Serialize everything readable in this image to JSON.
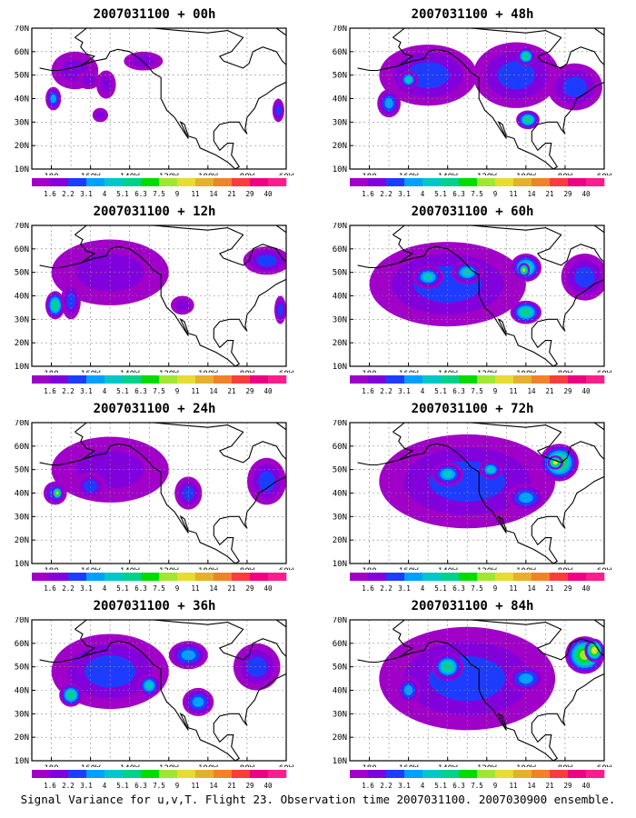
{
  "figure": {
    "caption": "Signal Variance for u,v,T. Flight 23. Observation time 2007031100. 2007030900 ensemble."
  },
  "axes": {
    "lat_labels": [
      "70N",
      "60N",
      "50N",
      "40N",
      "30N",
      "20N",
      "10N"
    ],
    "lon_labels": [
      "180",
      "160W",
      "140W",
      "120W",
      "100W",
      "80W",
      "60W"
    ]
  },
  "colorbar": {
    "levels": [
      "1.6",
      "2.2",
      "3.1",
      "4",
      "5.1",
      "6.3",
      "7.5",
      "9",
      "11",
      "14",
      "21",
      "29",
      "40"
    ],
    "colors": [
      "#a000c8",
      "#8200dc",
      "#1e3cff",
      "#00a0ff",
      "#00c8c8",
      "#00d28c",
      "#00dc00",
      "#a0e632",
      "#e6dc32",
      "#e6af2d",
      "#f08228",
      "#fa3c3c",
      "#f00082"
    ]
  },
  "panels": [
    {
      "title": "2007031100 + 00h",
      "blobs": [
        [
          -168,
          52,
          12,
          8,
          1
        ],
        [
          -179,
          40,
          4,
          5,
          3
        ],
        [
          -161,
          48,
          6,
          4,
          1
        ],
        [
          -152,
          46,
          5,
          6,
          1
        ],
        [
          -133,
          56,
          10,
          4,
          1
        ],
        [
          -64,
          35,
          3,
          5,
          2
        ],
        [
          -155,
          33,
          4,
          3,
          1
        ]
      ]
    },
    {
      "title": "2007031100 + 48h",
      "blobs": [
        [
          -150,
          50,
          25,
          13,
          2
        ],
        [
          -170,
          38,
          6,
          6,
          3
        ],
        [
          -160,
          48,
          5,
          4,
          4
        ],
        [
          -105,
          50,
          22,
          14,
          2
        ],
        [
          -100,
          58,
          5,
          4,
          5
        ],
        [
          -99,
          31,
          6,
          4,
          5
        ],
        [
          -75,
          45,
          14,
          10,
          2
        ]
      ]
    },
    {
      "title": "2007031100 + 12h",
      "blobs": [
        [
          -150,
          50,
          30,
          14,
          1
        ],
        [
          -178,
          36,
          5,
          6,
          5
        ],
        [
          -170,
          38,
          5,
          8,
          2
        ],
        [
          -70,
          55,
          12,
          6,
          2
        ],
        [
          -63,
          34,
          3,
          6,
          2
        ],
        [
          -113,
          36,
          6,
          4,
          1
        ]
      ]
    },
    {
      "title": "2007031100 + 60h",
      "blobs": [
        [
          -140,
          45,
          40,
          18,
          2
        ],
        [
          -150,
          48,
          8,
          5,
          4
        ],
        [
          -130,
          50,
          8,
          5,
          4
        ],
        [
          -100,
          52,
          8,
          6,
          5
        ],
        [
          -101,
          51,
          3,
          3,
          7
        ],
        [
          -100,
          33,
          8,
          5,
          5
        ],
        [
          -70,
          48,
          12,
          10,
          2
        ]
      ]
    },
    {
      "title": "2007031100 + 24h",
      "blobs": [
        [
          -150,
          50,
          30,
          14,
          1
        ],
        [
          -178,
          40,
          6,
          5,
          3
        ],
        [
          -177,
          40,
          3,
          3,
          7
        ],
        [
          -160,
          43,
          8,
          6,
          2
        ],
        [
          -110,
          40,
          7,
          7,
          2
        ],
        [
          -70,
          45,
          10,
          10,
          2
        ]
      ]
    },
    {
      "title": "2007031100 + 72h",
      "blobs": [
        [
          -130,
          45,
          45,
          20,
          2
        ],
        [
          -140,
          48,
          8,
          5,
          4
        ],
        [
          -83,
          53,
          10,
          8,
          6
        ],
        [
          -85,
          53,
          4,
          3,
          8
        ],
        [
          -118,
          50,
          6,
          4,
          4
        ],
        [
          -100,
          38,
          10,
          6,
          3
        ]
      ]
    },
    {
      "title": "2007031100 + 36h",
      "blobs": [
        [
          -150,
          48,
          30,
          16,
          2
        ],
        [
          -170,
          38,
          6,
          5,
          5
        ],
        [
          -105,
          35,
          8,
          6,
          3
        ],
        [
          -110,
          55,
          10,
          6,
          3
        ],
        [
          -75,
          50,
          12,
          10,
          2
        ],
        [
          -130,
          42,
          6,
          5,
          4
        ]
      ]
    },
    {
      "title": "2007031100 + 84h",
      "blobs": [
        [
          -130,
          45,
          45,
          22,
          2
        ],
        [
          -140,
          50,
          8,
          6,
          5
        ],
        [
          -70,
          55,
          10,
          8,
          7
        ],
        [
          -65,
          57,
          5,
          5,
          8
        ],
        [
          -100,
          45,
          10,
          6,
          3
        ],
        [
          -160,
          40,
          6,
          6,
          3
        ]
      ]
    }
  ]
}
